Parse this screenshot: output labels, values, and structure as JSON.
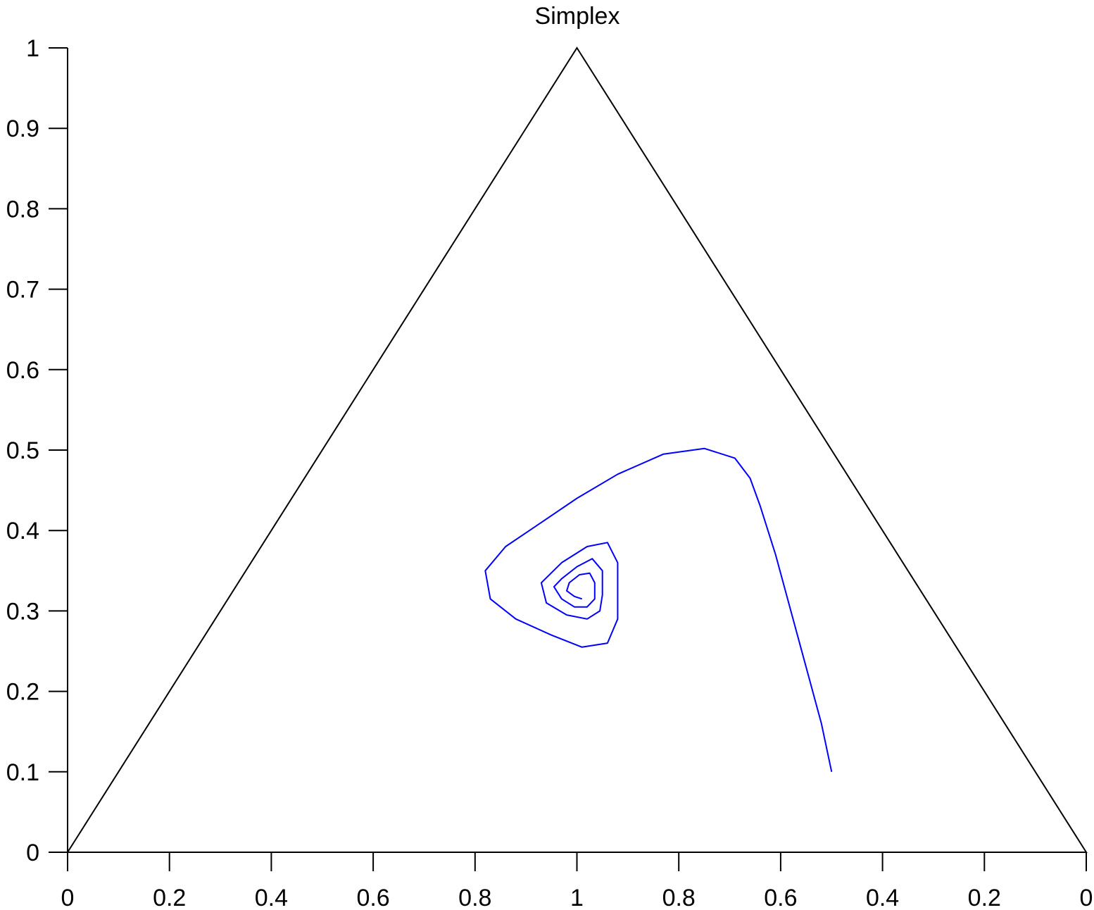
{
  "chart_data": {
    "type": "line",
    "title": "Simplex",
    "xlabel": "",
    "ylabel": "",
    "x_tick_labels": [
      "0",
      "0.2",
      "0.4",
      "0.6",
      "0.8",
      "1",
      "0.8",
      "0.6",
      "0.4",
      "0.2",
      "0"
    ],
    "y_tick_labels": [
      "0",
      "0.1",
      "0.2",
      "0.3",
      "0.4",
      "0.5",
      "0.6",
      "0.7",
      "0.8",
      "0.9",
      "1"
    ],
    "xlim": [
      0,
      2
    ],
    "ylim": [
      0,
      1
    ],
    "grid": false,
    "legend": false,
    "triangle": {
      "color": "#000000",
      "vertices": [
        [
          0,
          0
        ],
        [
          1,
          1
        ],
        [
          2,
          0
        ]
      ]
    },
    "series": [
      {
        "color": "#0000ff",
        "points": [
          [
            1.5,
            0.1
          ],
          [
            1.48,
            0.16
          ],
          [
            1.45,
            0.23
          ],
          [
            1.42,
            0.3
          ],
          [
            1.39,
            0.37
          ],
          [
            1.36,
            0.43
          ],
          [
            1.34,
            0.465
          ],
          [
            1.31,
            0.49
          ],
          [
            1.25,
            0.502
          ],
          [
            1.17,
            0.495
          ],
          [
            1.08,
            0.47
          ],
          [
            1.0,
            0.44
          ],
          [
            0.93,
            0.41
          ],
          [
            0.86,
            0.38
          ],
          [
            0.82,
            0.35
          ],
          [
            0.83,
            0.315
          ],
          [
            0.88,
            0.29
          ],
          [
            0.95,
            0.27
          ],
          [
            1.01,
            0.255
          ],
          [
            1.06,
            0.26
          ],
          [
            1.08,
            0.29
          ],
          [
            1.08,
            0.33
          ],
          [
            1.08,
            0.36
          ],
          [
            1.06,
            0.385
          ],
          [
            1.02,
            0.38
          ],
          [
            0.97,
            0.36
          ],
          [
            0.93,
            0.335
          ],
          [
            0.94,
            0.31
          ],
          [
            0.98,
            0.295
          ],
          [
            1.02,
            0.29
          ],
          [
            1.045,
            0.3
          ],
          [
            1.05,
            0.32
          ],
          [
            1.05,
            0.35
          ],
          [
            1.03,
            0.365
          ],
          [
            1.0,
            0.355
          ],
          [
            0.97,
            0.34
          ],
          [
            0.955,
            0.33
          ],
          [
            0.97,
            0.315
          ],
          [
            0.995,
            0.305
          ],
          [
            1.02,
            0.305
          ],
          [
            1.035,
            0.315
          ],
          [
            1.035,
            0.335
          ],
          [
            1.025,
            0.347
          ],
          [
            1.005,
            0.345
          ],
          [
            0.985,
            0.335
          ],
          [
            0.98,
            0.325
          ],
          [
            0.995,
            0.318
          ],
          [
            1.01,
            0.315
          ]
        ]
      }
    ]
  }
}
